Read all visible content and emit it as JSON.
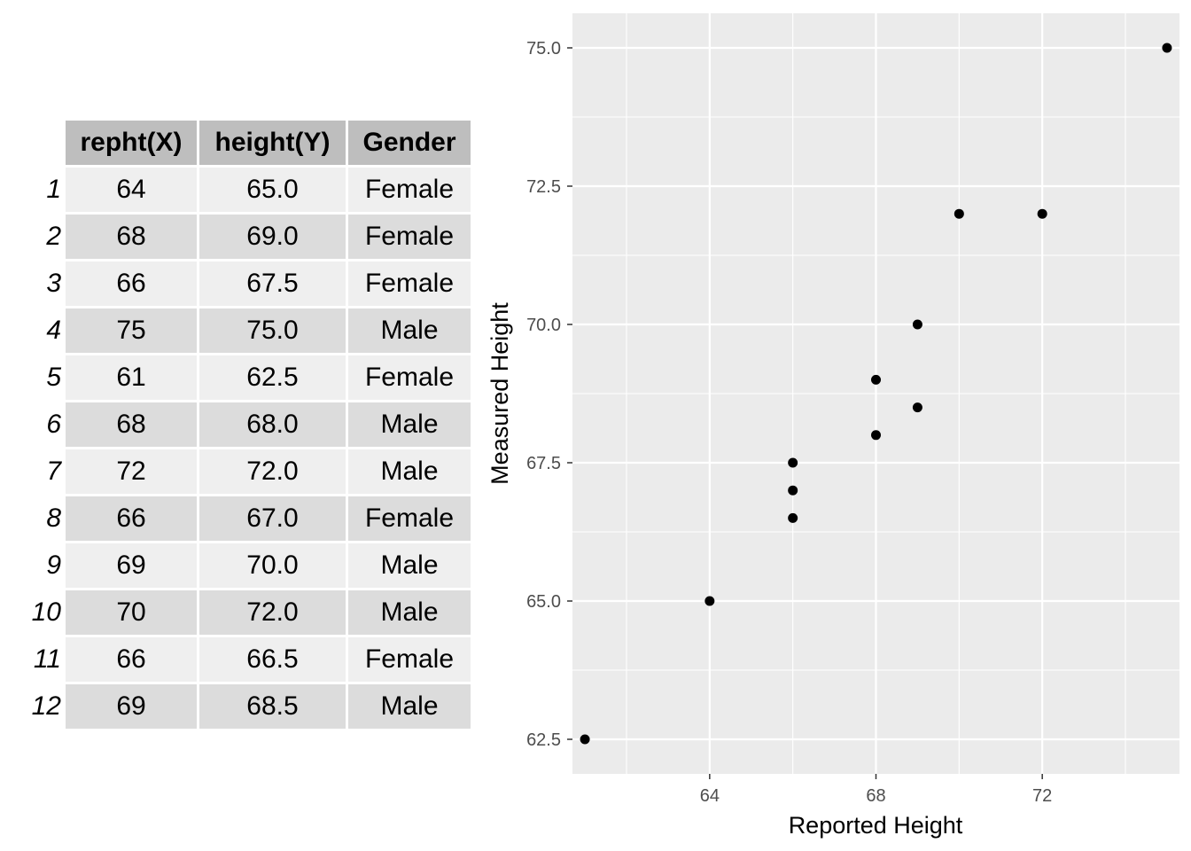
{
  "table": {
    "headers": [
      "repht(X)",
      "height(Y)",
      "Gender"
    ],
    "rows": [
      {
        "n": "1",
        "repht": "64",
        "height": "65.0",
        "gender": "Female"
      },
      {
        "n": "2",
        "repht": "68",
        "height": "69.0",
        "gender": "Female"
      },
      {
        "n": "3",
        "repht": "66",
        "height": "67.5",
        "gender": "Female"
      },
      {
        "n": "4",
        "repht": "75",
        "height": "75.0",
        "gender": "Male"
      },
      {
        "n": "5",
        "repht": "61",
        "height": "62.5",
        "gender": "Female"
      },
      {
        "n": "6",
        "repht": "68",
        "height": "68.0",
        "gender": "Male"
      },
      {
        "n": "7",
        "repht": "72",
        "height": "72.0",
        "gender": "Male"
      },
      {
        "n": "8",
        "repht": "66",
        "height": "67.0",
        "gender": "Female"
      },
      {
        "n": "9",
        "repht": "69",
        "height": "70.0",
        "gender": "Male"
      },
      {
        "n": "10",
        "repht": "70",
        "height": "72.0",
        "gender": "Male"
      },
      {
        "n": "11",
        "repht": "66",
        "height": "66.5",
        "gender": "Female"
      },
      {
        "n": "12",
        "repht": "69",
        "height": "68.5",
        "gender": "Male"
      }
    ]
  },
  "chart_data": {
    "type": "scatter",
    "xlabel": "Reported Height",
    "ylabel": "Measured Height",
    "x": [
      64,
      68,
      66,
      75,
      61,
      68,
      72,
      66,
      69,
      70,
      66,
      69
    ],
    "y": [
      65.0,
      69.0,
      67.5,
      75.0,
      62.5,
      68.0,
      72.0,
      67.0,
      70.0,
      72.0,
      66.5,
      68.5
    ],
    "xlim": [
      60.7,
      75.3
    ],
    "ylim": [
      61.875,
      75.625
    ],
    "xticks": [
      64,
      68,
      72
    ],
    "xtick_labels": [
      "64",
      "68",
      "72"
    ],
    "xminor": [
      62,
      66,
      70,
      74
    ],
    "yticks": [
      62.5,
      65.0,
      67.5,
      70.0,
      72.5,
      75.0
    ],
    "ytick_labels": [
      "62.5",
      "65.0",
      "67.5",
      "70.0",
      "72.5",
      "75.0"
    ],
    "yminor": [
      63.75,
      66.25,
      68.75,
      71.25,
      73.75
    ],
    "grid": true,
    "colors": {
      "panel": "#ebebeb",
      "grid": "#ffffff",
      "point": "#000000"
    }
  }
}
